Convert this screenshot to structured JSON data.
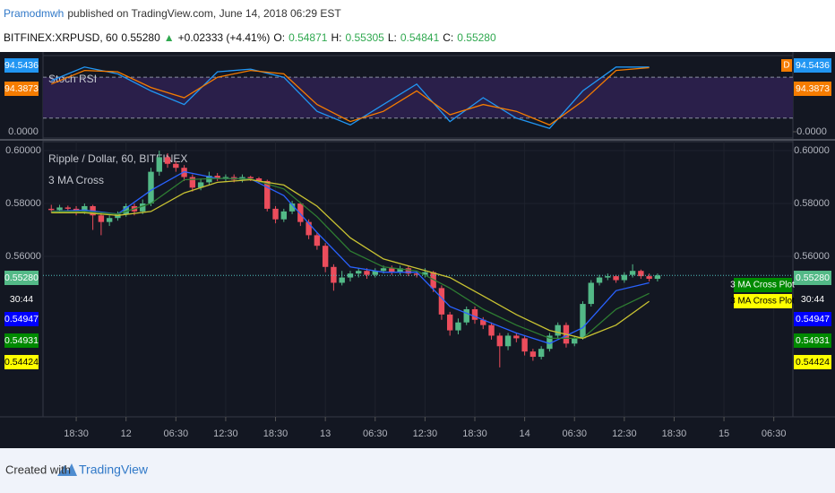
{
  "header": {
    "author": "Pramodmwh",
    "published": "published on TradingView.com, June 14, 2018 06:29 EST",
    "symbol": "BITFINEX:XRPUSD, 60",
    "last": "0.55280",
    "arrow": "▲",
    "change": "+0.02333 (+4.41%)",
    "o_label": "O:",
    "open": "0.54871",
    "h_label": "H:",
    "high": "0.55305",
    "l_label": "L:",
    "low": "0.54841",
    "c_label": "C:",
    "close": "0.55280"
  },
  "footer": {
    "created": "Created with",
    "brand": "TradingView"
  },
  "chart_data": [
    {
      "type": "candlestick",
      "pane": "main",
      "title": "Ripple / Dollar, 60, BITFINEX",
      "up_color": "#53b987",
      "down_color": "#eb4d5c",
      "grid": true,
      "x": [
        -3,
        -2,
        -1,
        0,
        1,
        2,
        3,
        4,
        5,
        6,
        7,
        8,
        9,
        10,
        11,
        12,
        13,
        14,
        15,
        16,
        17,
        18,
        19,
        20,
        21,
        22,
        23,
        24,
        25,
        26,
        27,
        28,
        29,
        30,
        31,
        32,
        33,
        34,
        35,
        36,
        37,
        38,
        39,
        40,
        41,
        42,
        43,
        44,
        45,
        46,
        47,
        48,
        49,
        50,
        51,
        52,
        53,
        54,
        55,
        56,
        57,
        58,
        59,
        60,
        61,
        62,
        63,
        64,
        65,
        66,
        67,
        68,
        69,
        70
      ],
      "open": [
        0.578,
        0.5775,
        0.5785,
        0.578,
        0.577,
        0.579,
        0.5755,
        0.573,
        0.5745,
        0.576,
        0.579,
        0.577,
        0.58,
        0.592,
        0.5975,
        0.595,
        0.5935,
        0.59,
        0.586,
        0.588,
        0.5905,
        0.5895,
        0.59,
        0.589,
        0.59,
        0.5895,
        0.5885,
        0.578,
        0.574,
        0.577,
        0.58,
        0.573,
        0.568,
        0.564,
        0.556,
        0.55,
        0.552,
        0.5535,
        0.5545,
        0.553,
        0.5545,
        0.5555,
        0.554,
        0.5555,
        0.5535,
        0.553,
        0.554,
        0.548,
        0.538,
        0.532,
        0.535,
        0.54,
        0.536,
        0.534,
        0.53,
        0.526,
        0.53,
        0.529,
        0.524,
        0.522,
        0.525,
        0.53,
        0.534,
        0.527,
        0.529,
        0.542,
        0.55,
        0.552,
        0.5525,
        0.551,
        0.553,
        0.5545,
        0.5525,
        0.5515
      ],
      "high": [
        0.5795,
        0.5795,
        0.5792,
        0.579,
        0.58,
        0.5795,
        0.5765,
        0.5755,
        0.577,
        0.58,
        0.58,
        0.5815,
        0.5935,
        0.6,
        0.599,
        0.596,
        0.5945,
        0.591,
        0.5895,
        0.592,
        0.5915,
        0.591,
        0.591,
        0.591,
        0.5905,
        0.59,
        0.589,
        0.579,
        0.578,
        0.581,
        0.5805,
        0.574,
        0.569,
        0.565,
        0.557,
        0.5545,
        0.5545,
        0.5555,
        0.5555,
        0.5555,
        0.5565,
        0.5565,
        0.5565,
        0.5565,
        0.5545,
        0.5555,
        0.5545,
        0.549,
        0.539,
        0.5365,
        0.541,
        0.541,
        0.537,
        0.535,
        0.531,
        0.531,
        0.531,
        0.53,
        0.525,
        0.526,
        0.531,
        0.535,
        0.535,
        0.53,
        0.543,
        0.551,
        0.553,
        0.5535,
        0.553,
        0.554,
        0.557,
        0.555,
        0.5535,
        0.5535
      ],
      "low": [
        0.5765,
        0.5765,
        0.5768,
        0.5755,
        0.576,
        0.57,
        0.568,
        0.5715,
        0.5735,
        0.575,
        0.5755,
        0.576,
        0.579,
        0.5905,
        0.5935,
        0.592,
        0.5885,
        0.5845,
        0.585,
        0.587,
        0.5885,
        0.5885,
        0.588,
        0.588,
        0.5885,
        0.5875,
        0.577,
        0.5725,
        0.573,
        0.576,
        0.5715,
        0.5665,
        0.5625,
        0.554,
        0.547,
        0.549,
        0.5505,
        0.552,
        0.5515,
        0.552,
        0.5535,
        0.553,
        0.553,
        0.5525,
        0.552,
        0.552,
        0.5465,
        0.536,
        0.53,
        0.5305,
        0.534,
        0.5345,
        0.5325,
        0.5285,
        0.518,
        0.5245,
        0.5275,
        0.5225,
        0.5205,
        0.521,
        0.524,
        0.529,
        0.5255,
        0.526,
        0.5285,
        0.541,
        0.549,
        0.551,
        0.55,
        0.55,
        0.552,
        0.5515,
        0.5505,
        0.5505
      ],
      "close": [
        0.5775,
        0.5785,
        0.578,
        0.577,
        0.579,
        0.5755,
        0.573,
        0.5745,
        0.576,
        0.579,
        0.577,
        0.58,
        0.592,
        0.5975,
        0.595,
        0.5935,
        0.59,
        0.586,
        0.588,
        0.5905,
        0.5895,
        0.59,
        0.589,
        0.59,
        0.5895,
        0.5885,
        0.578,
        0.574,
        0.577,
        0.58,
        0.573,
        0.568,
        0.564,
        0.556,
        0.55,
        0.552,
        0.5535,
        0.5545,
        0.553,
        0.5545,
        0.5555,
        0.554,
        0.5555,
        0.5535,
        0.553,
        0.554,
        0.548,
        0.538,
        0.532,
        0.535,
        0.54,
        0.536,
        0.534,
        0.53,
        0.526,
        0.53,
        0.529,
        0.524,
        0.522,
        0.525,
        0.53,
        0.534,
        0.527,
        0.529,
        0.542,
        0.55,
        0.552,
        0.5525,
        0.551,
        0.553,
        0.5545,
        0.5525,
        0.5515,
        0.5528
      ],
      "xlim": [
        -4,
        86.3
      ],
      "xticks": [
        {
          "value": 0,
          "label": "18:30"
        },
        {
          "value": 6,
          "label": "12"
        },
        {
          "value": 12,
          "label": "06:30"
        },
        {
          "value": 18,
          "label": "12:30"
        },
        {
          "value": 24,
          "label": "18:30"
        },
        {
          "value": 30,
          "label": "13"
        },
        {
          "value": 36,
          "label": "06:30"
        },
        {
          "value": 42,
          "label": "12:30"
        },
        {
          "value": 48,
          "label": "18:30"
        },
        {
          "value": 54,
          "label": "14"
        },
        {
          "value": 60,
          "label": "06:30"
        },
        {
          "value": 66,
          "label": "12:30"
        },
        {
          "value": 72,
          "label": "18:30"
        },
        {
          "value": 78,
          "label": "15"
        },
        {
          "value": 84,
          "label": "06:30"
        }
      ],
      "ylim": [
        0.4993,
        0.6034
      ],
      "yticks": [
        {
          "value": 0.56,
          "label": "0.56000"
        },
        {
          "value": 0.58,
          "label": "0.58000"
        },
        {
          "value": 0.6,
          "label": "0.60000"
        }
      ],
      "price_tags": [
        {
          "label": "0.55280",
          "color": "#53b987"
        },
        {
          "label": "30:44",
          "color": "#131722"
        },
        {
          "label": "0.54947",
          "color": "#0000ff"
        },
        {
          "label": "0.54931",
          "color": "#008a00"
        },
        {
          "label": "0.54424",
          "color": "#ffff00"
        }
      ]
    },
    {
      "type": "line",
      "pane": "main",
      "title": "3 MA Cross",
      "x": [
        -3,
        1,
        5,
        9,
        13,
        17,
        21,
        25,
        29,
        33,
        37,
        41,
        45,
        49,
        53,
        57,
        61,
        65,
        69
      ],
      "series": [
        {
          "color": "#2962ff",
          "values": [
            0.577,
            0.5775,
            0.576,
            0.585,
            0.592,
            0.5895,
            0.5893,
            0.583,
            0.569,
            0.556,
            0.554,
            0.554,
            0.541,
            0.536,
            0.531,
            0.527,
            0.533,
            0.547,
            0.55
          ]
        },
        {
          "color": "#2e7d32",
          "values": [
            0.577,
            0.577,
            0.576,
            0.58,
            0.589,
            0.5895,
            0.5893,
            0.5855,
            0.575,
            0.562,
            0.556,
            0.5545,
            0.548,
            0.54,
            0.534,
            0.529,
            0.529,
            0.54,
            0.546
          ]
        },
        {
          "color": "#c9c332",
          "values": [
            0.5765,
            0.5765,
            0.5755,
            0.577,
            0.584,
            0.588,
            0.589,
            0.587,
            0.579,
            0.567,
            0.559,
            0.5555,
            0.552,
            0.545,
            0.538,
            0.532,
            0.529,
            0.534,
            0.543
          ]
        }
      ],
      "plot_labels": [
        {
          "label": "3 MA Cross Plot",
          "color": "#008a00"
        },
        {
          "label": "3 MA Cross Plot",
          "color": "#ffff00"
        }
      ]
    },
    {
      "type": "line",
      "pane": "stoch",
      "title": "Stoch RSI",
      "x": [
        -3,
        1,
        5,
        9,
        13,
        17,
        21,
        25,
        29,
        33,
        37,
        41,
        45,
        49,
        53,
        57,
        61,
        65,
        69
      ],
      "series": [
        {
          "color": "#2196f3",
          "values": [
            75,
            95,
            85,
            60,
            40,
            88,
            92,
            80,
            30,
            10,
            40,
            70,
            15,
            50,
            20,
            5,
            60,
            95,
            95
          ]
        },
        {
          "color": "#f57c00",
          "values": [
            70,
            90,
            88,
            65,
            50,
            80,
            90,
            85,
            40,
            15,
            30,
            60,
            25,
            40,
            30,
            10,
            45,
            90,
            94
          ]
        }
      ],
      "ylim": [
        -9.2,
        111.8
      ],
      "yticks": [
        {
          "value": 0,
          "label": "0.0000"
        }
      ],
      "hlines": [
        80,
        20
      ],
      "band_color": "#2a1f4a",
      "price_tags": [
        {
          "label": "94.5436",
          "color": "#2196f3"
        },
        {
          "label": "94.3873",
          "color": "#f57c00"
        }
      ],
      "marker": "D"
    }
  ]
}
